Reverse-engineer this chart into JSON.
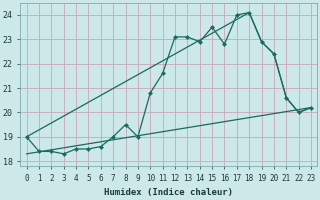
{
  "xlabel": "Humidex (Indice chaleur)",
  "bg_color": "#cce8e8",
  "grid_color_h": "#c8a8b8",
  "grid_color_v": "#c8a8b8",
  "line_color": "#1a6a60",
  "xlim": [
    -0.5,
    23.5
  ],
  "ylim": [
    17.8,
    24.5
  ],
  "yticks": [
    18,
    19,
    20,
    21,
    22,
    23,
    24
  ],
  "xticks": [
    0,
    1,
    2,
    3,
    4,
    5,
    6,
    7,
    8,
    9,
    10,
    11,
    12,
    13,
    14,
    15,
    16,
    17,
    18,
    19,
    20,
    21,
    22,
    23
  ],
  "line1_x": [
    0,
    1,
    2,
    3,
    4,
    5,
    6,
    7,
    8,
    9,
    10,
    11,
    12,
    13,
    14,
    15,
    16,
    17,
    18,
    19,
    20,
    21,
    22,
    23
  ],
  "line1_y": [
    19.0,
    18.4,
    18.4,
    18.3,
    18.5,
    18.5,
    18.6,
    19.0,
    19.5,
    19.0,
    20.8,
    21.6,
    23.1,
    23.1,
    22.9,
    23.5,
    22.8,
    24.0,
    24.1,
    22.9,
    22.4,
    20.6,
    20.0,
    20.2
  ],
  "line2_x": [
    0,
    18,
    19,
    20,
    21,
    22,
    23
  ],
  "line2_y": [
    19.0,
    24.1,
    22.9,
    22.4,
    20.6,
    20.0,
    20.2
  ],
  "line3_x": [
    0,
    23
  ],
  "line3_y": [
    18.3,
    20.2
  ],
  "marker": "D",
  "markersize": 2.5,
  "linewidth": 0.9
}
